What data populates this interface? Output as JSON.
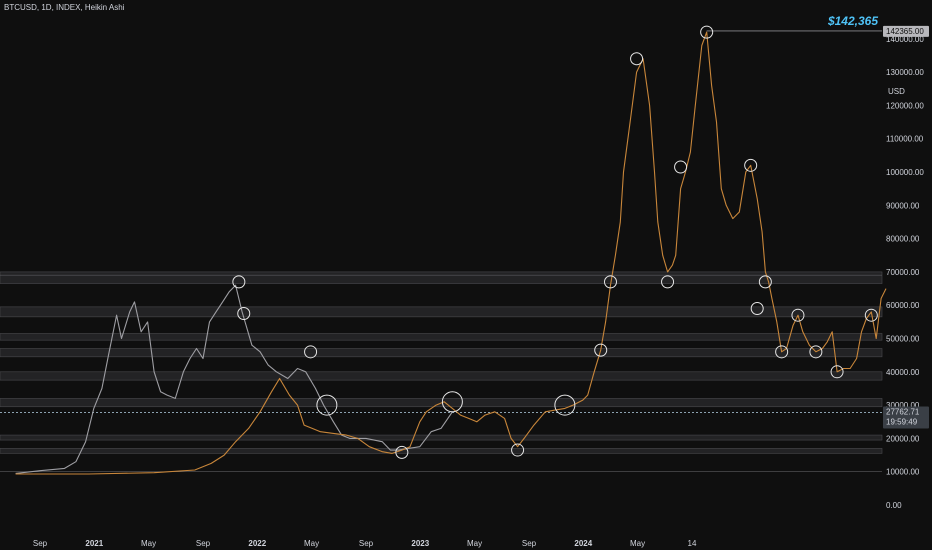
{
  "header": {
    "symbol_line": "BTCUSD, 1D, INDEX, Heikin Ashi"
  },
  "price_axis": {
    "unit": "USD",
    "ticks": [
      "0.00",
      "10000.00",
      "20000.00",
      "30000.00",
      "40000.00",
      "50000.00",
      "60000.00",
      "70000.00",
      "80000.00",
      "90000.00",
      "100000.00",
      "110000.00",
      "120000.00",
      "130000.00",
      "140000.00"
    ]
  },
  "time_axis": {
    "ticks": [
      "Sep",
      "2021",
      "May",
      "Sep",
      "2022",
      "May",
      "Sep",
      "2023",
      "May",
      "Sep",
      "2024",
      "May",
      "14"
    ],
    "bold": [
      "2021",
      "2022",
      "2023",
      "2024"
    ]
  },
  "annotations": {
    "target_label": "$142,365",
    "target_tag": "142365.00",
    "current_price": "27762.71",
    "countdown": "19:59:49"
  },
  "colors": {
    "background": "#0f0f0f",
    "history_series": "#9e9ea3",
    "projection_series": "#c8863a",
    "accent": "#4fc3f7",
    "zone_fill": "#2b2b2e"
  },
  "chart_data": {
    "type": "line",
    "title": "BTCUSD, 1D, INDEX, Heikin Ashi",
    "ylabel": "USD",
    "ylim": [
      -5000,
      150000
    ],
    "x_ticks": [
      {
        "label": "Sep",
        "x": 0.0
      },
      {
        "label": "2021",
        "x": 0.333
      },
      {
        "label": "May",
        "x": 0.666
      },
      {
        "label": "Sep",
        "x": 1.0
      },
      {
        "label": "2022",
        "x": 1.333
      },
      {
        "label": "May",
        "x": 1.666
      },
      {
        "label": "Sep",
        "x": 2.0
      },
      {
        "label": "2023",
        "x": 2.333
      },
      {
        "label": "May",
        "x": 2.666
      },
      {
        "label": "Sep",
        "x": 3.0
      },
      {
        "label": "2024",
        "x": 3.333
      },
      {
        "label": "May",
        "x": 3.666
      },
      {
        "label": "14",
        "x": 4.0
      }
    ],
    "series": [
      {
        "key": "history",
        "points": [
          [
            -0.15,
            9500
          ],
          [
            0.0,
            10300
          ],
          [
            0.15,
            11000
          ],
          [
            0.22,
            13000
          ],
          [
            0.28,
            19000
          ],
          [
            0.33,
            29000
          ],
          [
            0.38,
            35000
          ],
          [
            0.42,
            45000
          ],
          [
            0.47,
            57000
          ],
          [
            0.5,
            50000
          ],
          [
            0.55,
            58000
          ],
          [
            0.58,
            61000
          ],
          [
            0.62,
            52000
          ],
          [
            0.66,
            55000
          ],
          [
            0.7,
            40000
          ],
          [
            0.74,
            34000
          ],
          [
            0.78,
            33000
          ],
          [
            0.83,
            32000
          ],
          [
            0.88,
            40000
          ],
          [
            0.92,
            44000
          ],
          [
            0.96,
            47000
          ],
          [
            1.0,
            44000
          ],
          [
            1.04,
            55000
          ],
          [
            1.08,
            58000
          ],
          [
            1.12,
            61000
          ],
          [
            1.16,
            64000
          ],
          [
            1.2,
            66000
          ],
          [
            1.24,
            58000
          ],
          [
            1.3,
            48000
          ],
          [
            1.35,
            46000
          ],
          [
            1.4,
            42000
          ],
          [
            1.45,
            40000
          ],
          [
            1.52,
            38000
          ],
          [
            1.58,
            41000
          ],
          [
            1.63,
            40000
          ],
          [
            1.69,
            35000
          ],
          [
            1.74,
            30000
          ],
          [
            1.8,
            25000
          ],
          [
            1.85,
            21000
          ],
          [
            1.9,
            20000
          ],
          [
            1.95,
            20000
          ],
          [
            2.0,
            20000
          ],
          [
            2.05,
            19500
          ],
          [
            2.1,
            19000
          ],
          [
            2.15,
            16500
          ],
          [
            2.2,
            16500
          ],
          [
            2.26,
            17000
          ],
          [
            2.33,
            17500
          ],
          [
            2.4,
            22000
          ],
          [
            2.46,
            23000
          ],
          [
            2.53,
            28000
          ]
        ]
      },
      {
        "key": "projection",
        "points": [
          [
            -0.15,
            9300
          ],
          [
            0.3,
            9300
          ],
          [
            0.7,
            9700
          ],
          [
            0.95,
            10500
          ],
          [
            1.05,
            12500
          ],
          [
            1.13,
            15000
          ],
          [
            1.2,
            19000
          ],
          [
            1.28,
            23000
          ],
          [
            1.35,
            28000
          ],
          [
            1.42,
            34000
          ],
          [
            1.47,
            38000
          ],
          [
            1.53,
            33000
          ],
          [
            1.58,
            30000
          ],
          [
            1.62,
            24000
          ],
          [
            1.67,
            23000
          ],
          [
            1.72,
            22000
          ],
          [
            1.8,
            21500
          ],
          [
            1.88,
            21000
          ],
          [
            1.95,
            20000
          ],
          [
            2.02,
            17500
          ],
          [
            2.1,
            16000
          ],
          [
            2.16,
            15500
          ],
          [
            2.22,
            16500
          ],
          [
            2.27,
            17500
          ],
          [
            2.33,
            25000
          ],
          [
            2.37,
            28000
          ],
          [
            2.43,
            30000
          ],
          [
            2.48,
            31000
          ],
          [
            2.53,
            29000
          ],
          [
            2.58,
            27000
          ],
          [
            2.63,
            26000
          ],
          [
            2.68,
            25000
          ],
          [
            2.73,
            27000
          ],
          [
            2.79,
            28000
          ],
          [
            2.85,
            26000
          ],
          [
            2.89,
            20000
          ],
          [
            2.93,
            17500
          ],
          [
            2.97,
            20000
          ],
          [
            3.03,
            24000
          ],
          [
            3.1,
            28000
          ],
          [
            3.16,
            28500
          ],
          [
            3.22,
            29000
          ],
          [
            3.27,
            30000
          ],
          [
            3.33,
            31500
          ],
          [
            3.36,
            33000
          ],
          [
            3.4,
            40000
          ],
          [
            3.44,
            46500
          ],
          [
            3.47,
            55000
          ],
          [
            3.5,
            66000
          ],
          [
            3.53,
            75000
          ],
          [
            3.56,
            85000
          ],
          [
            3.58,
            100000
          ],
          [
            3.62,
            115000
          ],
          [
            3.66,
            130000
          ],
          [
            3.7,
            134000
          ],
          [
            3.74,
            120000
          ],
          [
            3.77,
            100000
          ],
          [
            3.79,
            85000
          ],
          [
            3.82,
            75000
          ],
          [
            3.85,
            70000
          ],
          [
            3.88,
            72000
          ],
          [
            3.9,
            75000
          ],
          [
            3.93,
            95000
          ],
          [
            3.96,
            100000
          ],
          [
            3.99,
            106000
          ],
          [
            4.02,
            120000
          ],
          [
            4.06,
            138000
          ],
          [
            4.09,
            142000
          ],
          [
            4.12,
            126000
          ],
          [
            4.15,
            115000
          ],
          [
            4.18,
            95000
          ],
          [
            4.21,
            90000
          ],
          [
            4.25,
            86000
          ],
          [
            4.29,
            88000
          ],
          [
            4.33,
            100000
          ],
          [
            4.36,
            102000
          ],
          [
            4.4,
            92000
          ],
          [
            4.43,
            82000
          ],
          [
            4.45,
            70000
          ],
          [
            4.47,
            67000
          ],
          [
            4.49,
            62000
          ],
          [
            4.52,
            55000
          ],
          [
            4.55,
            46000
          ],
          [
            4.58,
            47000
          ],
          [
            4.62,
            54000
          ],
          [
            4.65,
            57000
          ],
          [
            4.68,
            52000
          ],
          [
            4.72,
            48000
          ],
          [
            4.76,
            46000
          ],
          [
            4.8,
            47000
          ],
          [
            4.83,
            49000
          ],
          [
            4.86,
            52000
          ],
          [
            4.89,
            40000
          ],
          [
            4.93,
            41000
          ],
          [
            4.97,
            41000
          ],
          [
            5.01,
            44000
          ],
          [
            5.04,
            52000
          ],
          [
            5.07,
            56000
          ],
          [
            5.1,
            58000
          ],
          [
            5.13,
            50000
          ],
          [
            5.16,
            62000
          ],
          [
            5.19,
            65000
          ]
        ]
      }
    ],
    "zones": [
      [
        66500,
        70000
      ],
      [
        56500,
        59500
      ],
      [
        49500,
        51500
      ],
      [
        44500,
        47000
      ],
      [
        37500,
        40000
      ],
      [
        29500,
        32000
      ],
      [
        19500,
        21000
      ],
      [
        15500,
        17000
      ]
    ],
    "thin_lines": [
      69000,
      10000
    ],
    "target_line": 142365,
    "current_line": 27762.71,
    "markers": [
      {
        "x": 1.22,
        "y": 67000,
        "r": 6
      },
      {
        "x": 1.25,
        "y": 57500,
        "r": 6
      },
      {
        "x": 1.66,
        "y": 46000,
        "r": 6
      },
      {
        "x": 1.76,
        "y": 30000,
        "r": 10
      },
      {
        "x": 2.22,
        "y": 15800,
        "r": 6
      },
      {
        "x": 2.53,
        "y": 31000,
        "r": 10
      },
      {
        "x": 2.93,
        "y": 16500,
        "r": 6
      },
      {
        "x": 3.22,
        "y": 30000,
        "r": 10
      },
      {
        "x": 3.44,
        "y": 46500,
        "r": 6
      },
      {
        "x": 3.5,
        "y": 67000,
        "r": 6
      },
      {
        "x": 3.66,
        "y": 134000,
        "r": 6
      },
      {
        "x": 3.85,
        "y": 67000,
        "r": 6
      },
      {
        "x": 3.93,
        "y": 101500,
        "r": 6
      },
      {
        "x": 4.09,
        "y": 142000,
        "r": 6
      },
      {
        "x": 4.36,
        "y": 102000,
        "r": 6
      },
      {
        "x": 4.45,
        "y": 67000,
        "r": 6
      },
      {
        "x": 4.4,
        "y": 59000,
        "r": 6
      },
      {
        "x": 4.55,
        "y": 46000,
        "r": 6
      },
      {
        "x": 4.65,
        "y": 57000,
        "r": 6
      },
      {
        "x": 4.76,
        "y": 46000,
        "r": 6
      },
      {
        "x": 4.89,
        "y": 40000,
        "r": 6
      },
      {
        "x": 5.1,
        "y": 57000,
        "r": 6
      }
    ]
  }
}
